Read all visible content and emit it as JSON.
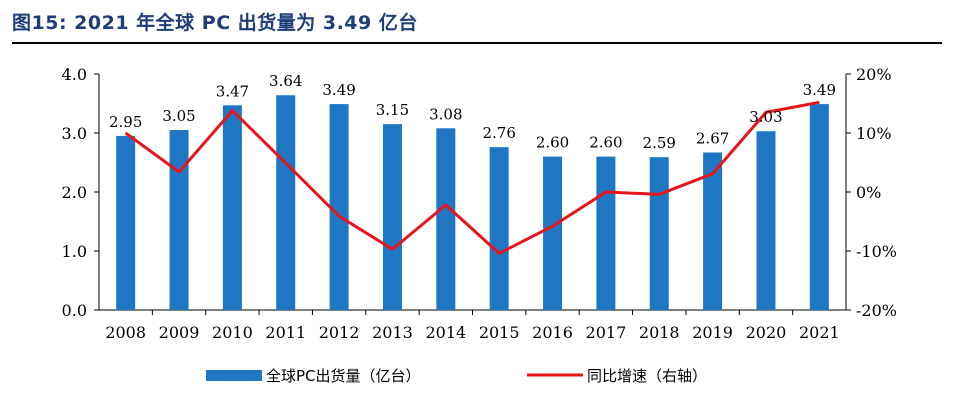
{
  "title": "图15:  2021 年全球 PC 出货量为 3.49 亿台",
  "chart_data": {
    "type": "bar",
    "categories": [
      "2008",
      "2009",
      "2010",
      "2011",
      "2012",
      "2013",
      "2014",
      "2015",
      "2016",
      "2017",
      "2018",
      "2019",
      "2020",
      "2021"
    ],
    "series": [
      {
        "name": "全球PC出货量（亿台）",
        "type": "bar",
        "axis": "left",
        "color": "#1f77c4",
        "values": [
          2.95,
          3.05,
          3.47,
          3.64,
          3.49,
          3.15,
          3.08,
          2.76,
          2.6,
          2.6,
          2.59,
          2.67,
          3.03,
          3.49
        ],
        "labels": [
          "2.95",
          "3.05",
          "3.47",
          "3.64",
          "3.49",
          "3.15",
          "3.08",
          "2.76",
          "2.60",
          "2.60",
          "2.59",
          "2.67",
          "3.03",
          "3.49"
        ]
      },
      {
        "name": "同比增速（右轴）",
        "type": "line",
        "axis": "right",
        "color": "#e8141b",
        "values": [
          10.0,
          3.4,
          13.8,
          4.9,
          -4.1,
          -9.7,
          -2.2,
          -10.4,
          -5.8,
          0.0,
          -0.4,
          3.1,
          13.5,
          15.2
        ]
      }
    ],
    "y_left": {
      "lim": [
        0,
        4
      ],
      "ticks": [
        "0.0",
        "1.0",
        "2.0",
        "3.0",
        "4.0"
      ]
    },
    "y_right": {
      "lim": [
        -20,
        20
      ],
      "ticks": [
        "-20%",
        "-10%",
        "0%",
        "10%",
        "20%"
      ]
    },
    "legend_position": "bottom",
    "grid": false
  }
}
